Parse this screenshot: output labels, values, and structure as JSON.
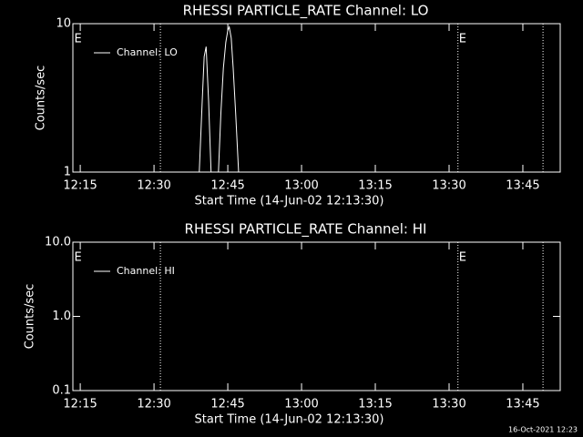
{
  "chart_data": [
    {
      "type": "line",
      "title": "RHESSI PARTICLE_RATE Channel: LO",
      "x_label": "Start Time (14-Jun-02 12:13:30)",
      "y_label": "Counts/sec",
      "x": [
        759.2,
        759.8,
        760.2,
        760.6,
        761.1,
        761.6,
        762.4,
        763.1,
        763.6,
        764.1,
        764.6,
        765.0,
        765.3,
        765.7,
        766.1,
        766.6,
        767.2
      ],
      "series": [
        {
          "name": "Channel: LO",
          "color": "#ffffff",
          "values": [
            1,
            3,
            6,
            7,
            3,
            1,
            null,
            1,
            2.5,
            5,
            7.5,
            9,
            9.5,
            8,
            5,
            2.5,
            1
          ]
        }
      ],
      "xlim": [
        733.5,
        832.6
      ],
      "xticks": [
        {
          "value": 735,
          "label": "12:15"
        },
        {
          "value": 750,
          "label": "12:30"
        },
        {
          "value": 765,
          "label": "12:45"
        },
        {
          "value": 780,
          "label": "13:00"
        },
        {
          "value": 795,
          "label": "13:15"
        },
        {
          "value": 810,
          "label": "13:30"
        },
        {
          "value": 825,
          "label": "13:45"
        }
      ],
      "ylim": [
        1,
        10
      ],
      "yticks": [
        1,
        10
      ],
      "ylog": true,
      "vlines": [
        751.3,
        811.8,
        829.1
      ],
      "annotations": [
        {
          "text": "E",
          "x": 733.6
        },
        {
          "text": "E",
          "x": 811.8
        }
      ],
      "legend": "upper left"
    },
    {
      "type": "line",
      "title": "RHESSI PARTICLE_RATE Channel: HI",
      "x_label": "Start Time (14-Jun-02 12:13:30)",
      "y_label": "Counts/sec",
      "x": [],
      "series": [
        {
          "name": "Channel: HI",
          "color": "#ffffff",
          "values": []
        }
      ],
      "xlim": [
        733.5,
        832.6
      ],
      "xticks": [
        {
          "value": 735,
          "label": "12:15"
        },
        {
          "value": 750,
          "label": "12:30"
        },
        {
          "value": 765,
          "label": "12:45"
        },
        {
          "value": 780,
          "label": "13:00"
        },
        {
          "value": 795,
          "label": "13:15"
        },
        {
          "value": 810,
          "label": "13:30"
        },
        {
          "value": 825,
          "label": "13:45"
        }
      ],
      "ylim": [
        0.1,
        10
      ],
      "yticks": [
        {
          "value": 0.1,
          "label": "0.1"
        },
        {
          "value": 1,
          "label": "1.0"
        },
        {
          "value": 10,
          "label": "10.0"
        }
      ],
      "ylog": true,
      "vlines": [
        751.3,
        811.8,
        829.1
      ],
      "annotations": [
        {
          "text": "E",
          "x": 733.6
        },
        {
          "text": "E",
          "x": 811.8
        }
      ],
      "legend": "upper left"
    }
  ],
  "footer": "16-Oct-2021 12:23"
}
